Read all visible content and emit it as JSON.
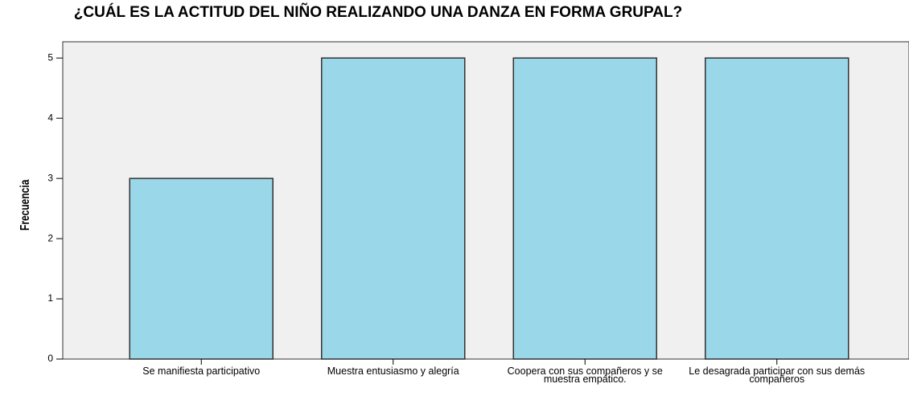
{
  "chart_data": {
    "type": "bar",
    "title": "¿CUÁL ES LA ACTITUD DEL NIÑO REALIZANDO UNA DANZA EN FORMA GRUPAL?",
    "y_label": "Frecuencia",
    "categories": [
      "Se manifiesta participativo",
      "Muestra entusiasmo y alegría",
      "Coopera con sus compañeros y se muestra empático.",
      "Le desagrada participar con sus demás compañeros"
    ],
    "values": [
      3,
      5,
      5,
      5
    ],
    "color": "#9ad7e8",
    "ylim": [
      0,
      5.27
    ],
    "yticks": [
      0,
      1,
      2,
      3,
      4,
      5
    ],
    "grid": false
  }
}
